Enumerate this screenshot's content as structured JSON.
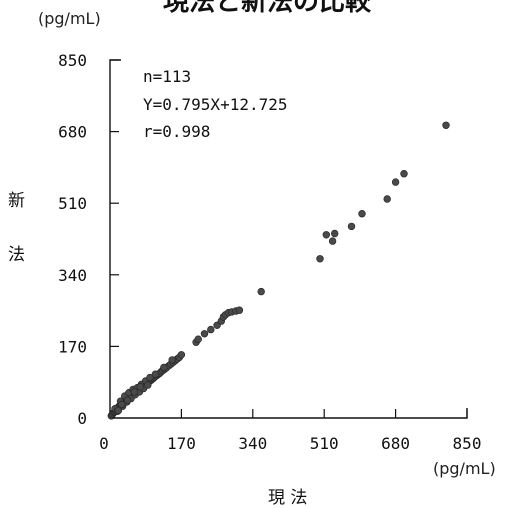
{
  "chart_data": {
    "type": "scatter",
    "title": "現法と新法の比較",
    "y_unit": "(pg/mL)",
    "x_unit": "(pg/mL)",
    "xlabel": "現 法",
    "ylabel_chars": [
      "新",
      "法"
    ],
    "xlim": [
      0,
      850
    ],
    "ylim": [
      0,
      850
    ],
    "x_ticks": [
      "0",
      "170",
      "340",
      "510",
      "680",
      "850"
    ],
    "y_ticks": [
      "0",
      "170",
      "340",
      "510",
      "680",
      "850"
    ],
    "x_tick_values": [
      0,
      170,
      340,
      510,
      680,
      850
    ],
    "y_tick_values": [
      0,
      170,
      340,
      510,
      680,
      850
    ],
    "annotations": [
      "n=113",
      "Y=0.795X+12.725",
      "r=0.998"
    ],
    "grid": false,
    "points": [
      [
        3,
        5
      ],
      [
        5,
        8
      ],
      [
        7,
        10
      ],
      [
        9,
        13
      ],
      [
        11,
        15
      ],
      [
        13,
        17
      ],
      [
        15,
        20
      ],
      [
        16,
        22
      ],
      [
        18,
        24
      ],
      [
        20,
        26
      ],
      [
        22,
        28
      ],
      [
        24,
        30
      ],
      [
        26,
        33
      ],
      [
        28,
        35
      ],
      [
        30,
        36
      ],
      [
        32,
        38
      ],
      [
        34,
        40
      ],
      [
        36,
        42
      ],
      [
        38,
        44
      ],
      [
        40,
        45
      ],
      [
        42,
        47
      ],
      [
        44,
        49
      ],
      [
        46,
        50
      ],
      [
        48,
        52
      ],
      [
        50,
        53
      ],
      [
        52,
        55
      ],
      [
        54,
        56
      ],
      [
        56,
        58
      ],
      [
        58,
        59
      ],
      [
        60,
        61
      ],
      [
        62,
        62
      ],
      [
        64,
        64
      ],
      [
        66,
        65
      ],
      [
        68,
        67
      ],
      [
        70,
        68
      ],
      [
        72,
        70
      ],
      [
        74,
        71
      ],
      [
        76,
        73
      ],
      [
        78,
        75
      ],
      [
        80,
        76
      ],
      [
        82,
        78
      ],
      [
        84,
        79
      ],
      [
        86,
        81
      ],
      [
        88,
        82
      ],
      [
        90,
        84
      ],
      [
        92,
        85
      ],
      [
        95,
        88
      ],
      [
        98,
        90
      ],
      [
        100,
        92
      ],
      [
        103,
        94
      ],
      [
        106,
        97
      ],
      [
        110,
        100
      ],
      [
        114,
        103
      ],
      [
        118,
        106
      ],
      [
        122,
        110
      ],
      [
        126,
        113
      ],
      [
        130,
        116
      ],
      [
        134,
        119
      ],
      [
        140,
        124
      ],
      [
        145,
        128
      ],
      [
        150,
        132
      ],
      [
        155,
        136
      ],
      [
        160,
        140
      ],
      [
        165,
        144
      ],
      [
        12,
        22
      ],
      [
        18,
        16
      ],
      [
        25,
        40
      ],
      [
        30,
        28
      ],
      [
        35,
        52
      ],
      [
        40,
        38
      ],
      [
        45,
        60
      ],
      [
        50,
        46
      ],
      [
        55,
        68
      ],
      [
        60,
        55
      ],
      [
        65,
        72
      ],
      [
        70,
        62
      ],
      [
        75,
        80
      ],
      [
        80,
        70
      ],
      [
        85,
        88
      ],
      [
        90,
        78
      ],
      [
        20,
        18
      ],
      [
        28,
        32
      ],
      [
        42,
        42
      ],
      [
        58,
        62
      ],
      [
        72,
        74
      ],
      [
        95,
        96
      ],
      [
        108,
        104
      ],
      [
        128,
        120
      ],
      [
        148,
        138
      ],
      [
        170,
        150
      ],
      [
        205,
        180
      ],
      [
        210,
        187
      ],
      [
        225,
        200
      ],
      [
        240,
        210
      ],
      [
        255,
        220
      ],
      [
        265,
        230
      ],
      [
        270,
        240
      ],
      [
        275,
        245
      ],
      [
        282,
        250
      ],
      [
        290,
        252
      ],
      [
        300,
        254
      ],
      [
        308,
        256
      ],
      [
        360,
        300
      ],
      [
        500,
        378
      ],
      [
        515,
        435
      ],
      [
        530,
        420
      ],
      [
        535,
        438
      ],
      [
        575,
        455
      ],
      [
        600,
        485
      ],
      [
        660,
        520
      ],
      [
        680,
        560
      ],
      [
        700,
        580
      ],
      [
        800,
        695
      ]
    ]
  }
}
